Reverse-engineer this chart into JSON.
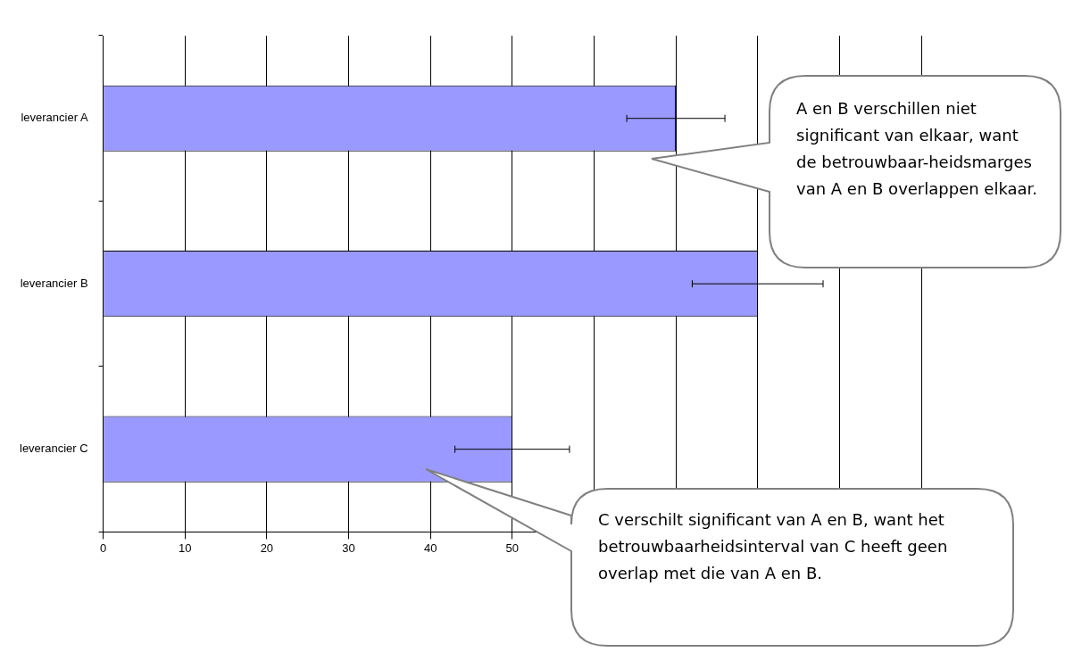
{
  "chart_data": {
    "type": "bar",
    "orientation": "horizontal",
    "categories": [
      "leverancier A",
      "leverancier B",
      "leverancier C"
    ],
    "values": [
      70,
      80,
      50
    ],
    "color": "#9999ff",
    "errors": [
      [
        64,
        76
      ],
      [
        72,
        88
      ],
      [
        43,
        57
      ]
    ],
    "xlim": [
      0,
      100
    ],
    "xticks": [
      0,
      10,
      20,
      30,
      40,
      50,
      {
        "value": 60,
        "label": null
      },
      {
        "value": 70,
        "label": null
      },
      {
        "value": 80,
        "label": null
      },
      {
        "value": 90,
        "label": null
      },
      {
        "value": 100,
        "label": null
      }
    ],
    "grid": "x",
    "legend": false,
    "annotations": [
      "A en B verschillen niet significant van elkaar, want de betrouwbaar-heidsmarges van A en B overlappen elkaar.",
      "C verschilt significant van A en B, want het betrouwbaarheidsinterval van C heeft geen overlap met die van A en B."
    ]
  }
}
